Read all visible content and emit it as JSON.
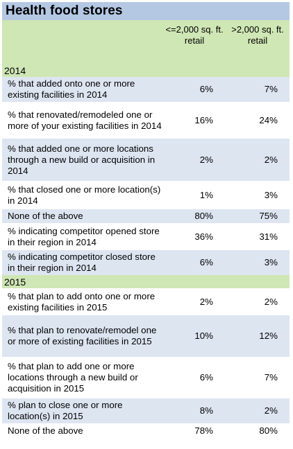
{
  "title": "Health food stores",
  "columns": [
    "<=2,000 sq. ft. retail",
    ">2,000 sq. ft. retail"
  ],
  "sections": [
    {
      "label": "2014",
      "rows": [
        {
          "label": "% that added onto one or more existing facilities in 2014",
          "v1": "6%",
          "v2": "7%"
        },
        {
          "label": "% that renovated/remodeled one or more of your existing facilities in 2014",
          "v1": "16%",
          "v2": "24%"
        },
        {
          "label": "% that added one or more locations through a new build or acquisition in 2014",
          "v1": "2%",
          "v2": "2%"
        },
        {
          "label": "% that closed one or more location(s) in 2014",
          "v1": "1%",
          "v2": "3%"
        },
        {
          "label": "None of the above",
          "v1": "80%",
          "v2": "75%"
        },
        {
          "label": "% indicating competitor opened store in their region in 2014",
          "v1": "36%",
          "v2": "31%"
        },
        {
          "label": "% indicating competitor closed store in their region in 2014",
          "v1": "6%",
          "v2": "3%"
        }
      ]
    },
    {
      "label": "2015",
      "rows": [
        {
          "label": "% that plan to add onto one or more existing facilities in 2015",
          "v1": "2%",
          "v2": "2%"
        },
        {
          "label": "% that plan to renovate/remodel one or more of existing facilities in 2015",
          "v1": "10%",
          "v2": "12%"
        },
        {
          "label": "% that plan to add one or more locations through a new build or acquisition in 2015",
          "v1": "6%",
          "v2": "7%"
        },
        {
          "label": "% plan to close one or more location(s) in 2015",
          "v1": "8%",
          "v2": "2%"
        },
        {
          "label": "None of the above",
          "v1": "78%",
          "v2": "80%"
        }
      ]
    }
  ],
  "colors": {
    "title_bg": "#b4c8e4",
    "header_bg": "#cfe6b5",
    "alt_row_bg": "#dde5f1"
  },
  "chart_data": {
    "type": "table",
    "title": "Health food stores",
    "columns": [
      "<=2,000 sq. ft. retail",
      ">2,000 sq. ft. retail"
    ],
    "groups": [
      {
        "name": "2014",
        "rows": [
          {
            "label": "% that added onto one or more existing facilities in 2014",
            "values": [
              6,
              7
            ]
          },
          {
            "label": "% that renovated/remodeled one or more of your existing facilities in 2014",
            "values": [
              16,
              24
            ]
          },
          {
            "label": "% that added one or more locations through a new build or acquisition in 2014",
            "values": [
              2,
              2
            ]
          },
          {
            "label": "% that closed one or more location(s) in 2014",
            "values": [
              1,
              3
            ]
          },
          {
            "label": "None of the above",
            "values": [
              80,
              75
            ]
          },
          {
            "label": "% indicating competitor opened store in their region in 2014",
            "values": [
              36,
              31
            ]
          },
          {
            "label": "% indicating competitor closed store in their region in 2014",
            "values": [
              6,
              3
            ]
          }
        ]
      },
      {
        "name": "2015",
        "rows": [
          {
            "label": "% that plan to add onto one or more existing facilities in 2015",
            "values": [
              2,
              2
            ]
          },
          {
            "label": "% that plan to renovate/remodel one or more of existing facilities in 2015",
            "values": [
              10,
              12
            ]
          },
          {
            "label": "% that plan to add one or more locations through a new build or acquisition in 2015",
            "values": [
              6,
              7
            ]
          },
          {
            "label": "% plan to close one or more location(s) in 2015",
            "values": [
              8,
              2
            ]
          },
          {
            "label": "None of the above",
            "values": [
              78,
              80
            ]
          }
        ]
      }
    ]
  }
}
